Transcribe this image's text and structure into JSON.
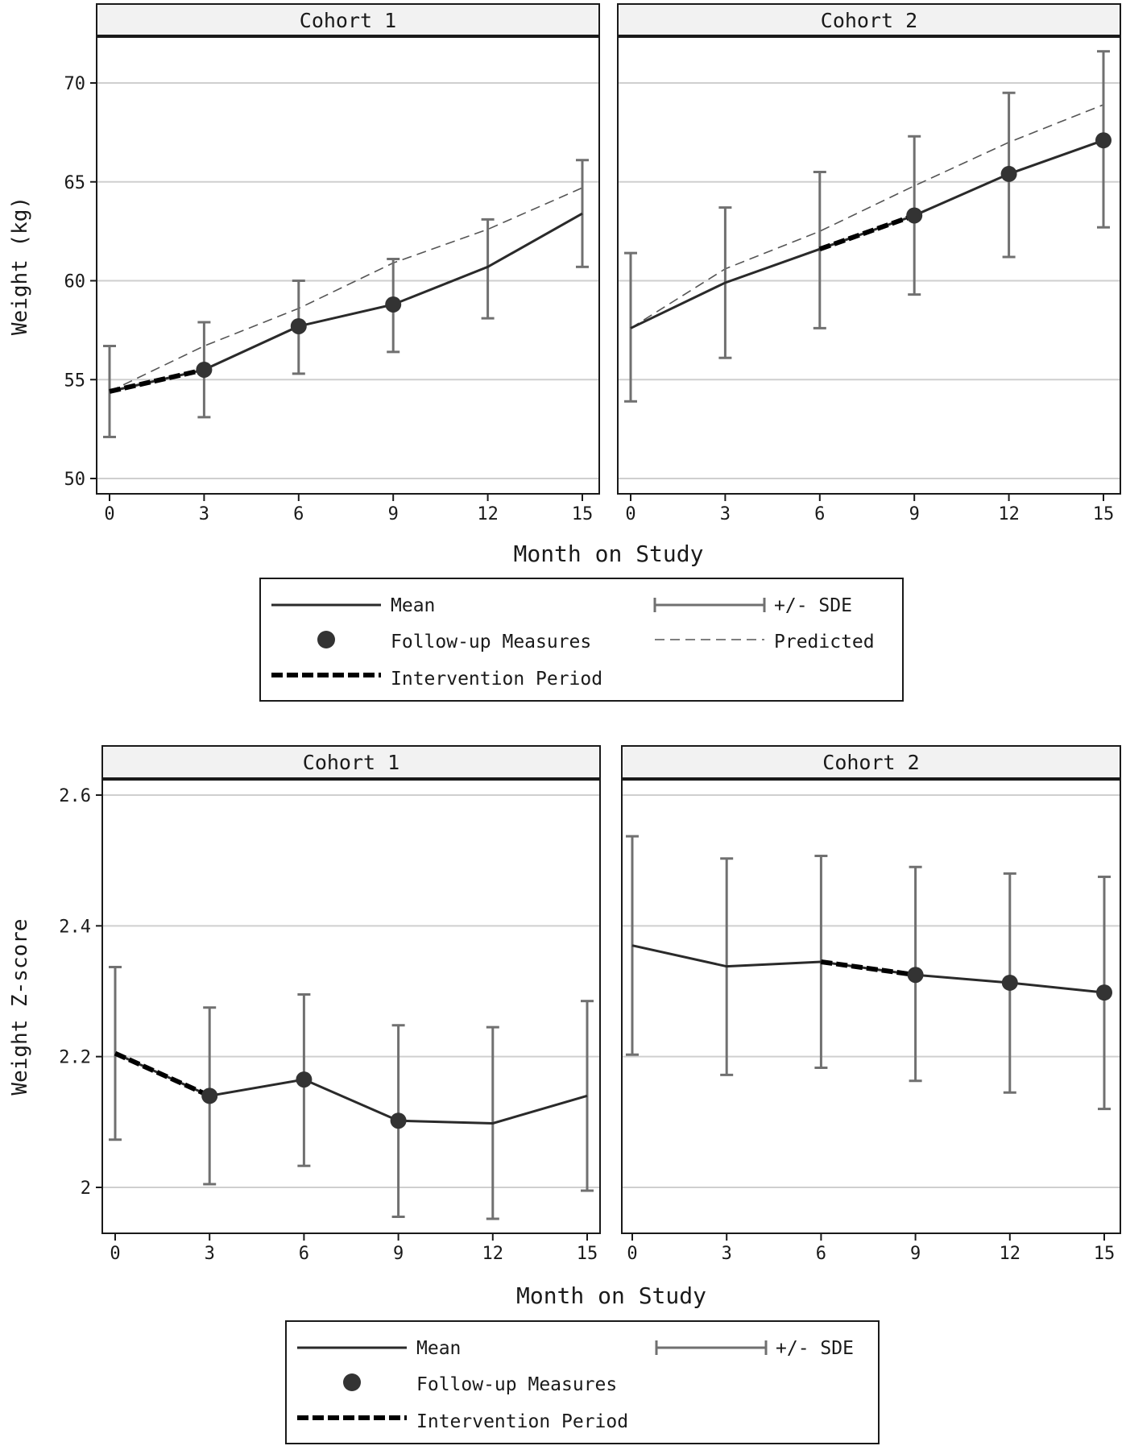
{
  "chart_data": [
    {
      "type": "line",
      "xlabel": "Month on Study",
      "ylabel": "Weight (kg)",
      "ylim": [
        49.5,
        72.8
      ],
      "yticks": [
        50,
        55,
        60,
        65,
        70
      ],
      "xlim": [
        -0.5,
        15.5
      ],
      "xticks": [
        0,
        3,
        6,
        9,
        12,
        15
      ],
      "grid": true,
      "legend_position": "bottom",
      "panels": [
        {
          "title": "Cohort 1",
          "x": [
            0,
            3,
            6,
            9,
            12,
            15
          ],
          "mean": [
            54.4,
            55.5,
            57.7,
            58.8,
            60.7,
            63.4
          ],
          "lower": [
            52.1,
            53.1,
            55.3,
            56.4,
            58.1,
            60.7
          ],
          "upper": [
            56.7,
            57.9,
            60.0,
            61.1,
            63.1,
            66.1
          ],
          "predicted": [
            54.4,
            56.7,
            58.6,
            60.9,
            62.6,
            64.7
          ],
          "followup_months": [
            3,
            6,
            9
          ],
          "intervention_period": [
            0,
            3
          ]
        },
        {
          "title": "Cohort 2",
          "x": [
            0,
            3,
            6,
            9,
            12,
            15
          ],
          "mean": [
            57.6,
            59.9,
            61.6,
            63.3,
            65.4,
            67.1
          ],
          "lower": [
            53.9,
            56.1,
            57.6,
            59.3,
            61.2,
            62.7
          ],
          "upper": [
            61.4,
            63.7,
            65.5,
            67.3,
            69.5,
            71.6
          ],
          "predicted": [
            57.6,
            60.6,
            62.5,
            64.8,
            67.0,
            68.9
          ],
          "followup_months": [
            9,
            12,
            15
          ],
          "intervention_period": [
            6,
            9
          ]
        }
      ],
      "legend": [
        {
          "label": "Mean",
          "style": "solid"
        },
        {
          "label": "+/- SDE",
          "style": "errorbar"
        },
        {
          "label": "Follow-up Measures",
          "style": "marker"
        },
        {
          "label": "Predicted",
          "style": "thin-dashed"
        },
        {
          "label": "Intervention Period",
          "style": "thick-dashed"
        }
      ]
    },
    {
      "type": "line",
      "xlabel": "Month on Study",
      "ylabel": "Weight Z-score",
      "ylim": [
        1.93,
        2.64
      ],
      "yticks": [
        2,
        2.2,
        2.4,
        2.6
      ],
      "xlim": [
        -0.5,
        15.5
      ],
      "xticks": [
        0,
        3,
        6,
        9,
        12,
        15
      ],
      "grid": true,
      "legend_position": "bottom",
      "panels": [
        {
          "title": "Cohort 1",
          "x": [
            0,
            3,
            6,
            9,
            12,
            15
          ],
          "mean": [
            2.205,
            2.14,
            2.165,
            2.102,
            2.098,
            2.14
          ],
          "lower": [
            2.073,
            2.005,
            2.033,
            1.955,
            1.952,
            1.995
          ],
          "upper": [
            2.337,
            2.275,
            2.295,
            2.248,
            2.245,
            2.285
          ],
          "followup_months": [
            3,
            6,
            9
          ],
          "intervention_period": [
            0,
            3
          ]
        },
        {
          "title": "Cohort 2",
          "x": [
            0,
            3,
            6,
            9,
            12,
            15
          ],
          "mean": [
            2.37,
            2.338,
            2.345,
            2.325,
            2.313,
            2.298
          ],
          "lower": [
            2.203,
            2.172,
            2.183,
            2.163,
            2.145,
            2.12
          ],
          "upper": [
            2.537,
            2.503,
            2.507,
            2.49,
            2.48,
            2.475
          ],
          "followup_months": [
            9,
            12,
            15
          ],
          "intervention_period": [
            6,
            9
          ]
        }
      ],
      "legend": [
        {
          "label": "Mean",
          "style": "solid"
        },
        {
          "label": "+/- SDE",
          "style": "errorbar"
        },
        {
          "label": "Follow-up Measures",
          "style": "marker"
        },
        {
          "label": "Intervention Period",
          "style": "thick-dashed"
        }
      ]
    }
  ]
}
